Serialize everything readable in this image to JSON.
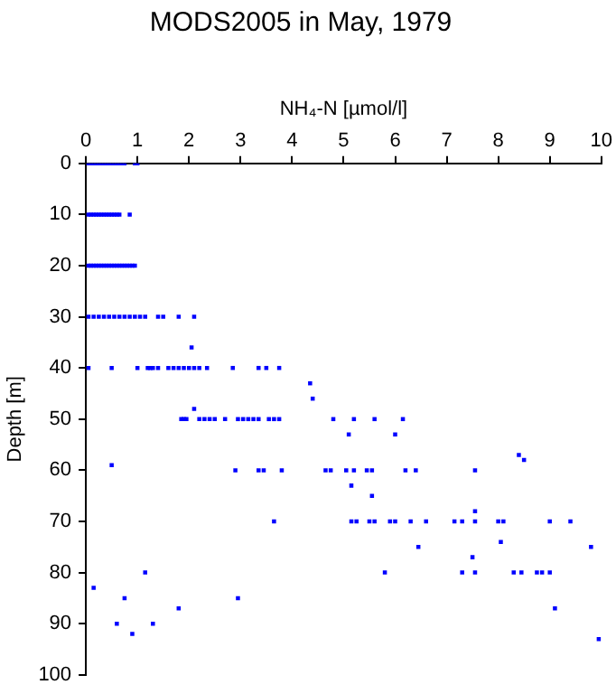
{
  "chart_data": {
    "type": "scatter",
    "title": "MODS2005 in May, 1979",
    "xlabel": "NH₄-N [µmol/l]",
    "ylabel": "Depth [m]",
    "xlim": [
      0,
      10
    ],
    "xticks": [
      0,
      1,
      2,
      3,
      4,
      5,
      6,
      7,
      8,
      9,
      10
    ],
    "ylim": [
      100,
      0
    ],
    "yticks": [
      0,
      10,
      20,
      30,
      40,
      50,
      60,
      70,
      80,
      90,
      100
    ],
    "grid": false,
    "legend": false,
    "marker": "square",
    "series": [
      {
        "color": "#0000ff",
        "x": [
          0.05,
          0.1,
          0.15,
          0.2,
          0.25,
          0.3,
          0.35,
          0.4,
          0.45,
          0.5,
          0.55,
          0.6,
          0.65,
          0.7,
          0.75,
          0.95,
          1.0,
          0.05,
          0.1,
          0.15,
          0.2,
          0.25,
          0.3,
          0.35,
          0.4,
          0.45,
          0.5,
          0.55,
          0.6,
          0.65,
          0.85,
          0.05,
          0.1,
          0.15,
          0.2,
          0.25,
          0.3,
          0.35,
          0.4,
          0.45,
          0.5,
          0.55,
          0.6,
          0.65,
          0.7,
          0.75,
          0.8,
          0.85,
          0.9,
          0.95,
          0.05,
          0.15,
          0.25,
          0.35,
          0.45,
          0.55,
          0.65,
          0.75,
          0.85,
          0.95,
          1.05,
          1.15,
          1.4,
          1.5,
          1.8,
          2.1,
          2.05,
          0.05,
          0.5,
          1.0,
          1.2,
          1.25,
          1.3,
          1.4,
          1.6,
          1.7,
          1.8,
          1.9,
          2.0,
          2.1,
          2.2,
          2.35,
          2.85,
          3.35,
          3.5,
          3.75,
          4.35,
          4.4,
          2.1,
          1.85,
          1.9,
          1.95,
          2.2,
          2.3,
          2.4,
          2.5,
          2.7,
          2.95,
          3.05,
          3.15,
          3.25,
          3.35,
          3.55,
          3.65,
          3.75,
          4.8,
          5.2,
          5.6,
          6.15,
          5.1,
          6.0,
          8.4,
          8.5,
          0.5,
          2.9,
          3.35,
          3.45,
          3.8,
          4.65,
          4.75,
          5.05,
          5.2,
          5.45,
          5.55,
          6.2,
          6.4,
          7.55,
          5.15,
          5.55,
          7.55,
          3.65,
          5.15,
          5.25,
          5.5,
          5.6,
          5.9,
          6.0,
          6.3,
          6.6,
          7.15,
          7.3,
          7.55,
          8.0,
          8.1,
          9.0,
          9.4,
          8.05,
          6.45,
          9.8,
          7.5,
          1.15,
          5.8,
          7.3,
          7.55,
          8.3,
          8.45,
          8.75,
          8.85,
          9.0,
          0.15,
          0.75,
          2.95,
          1.8,
          9.1,
          0.6,
          1.3,
          0.9,
          9.95
        ],
        "values": [
          0,
          0,
          0,
          0,
          0,
          0,
          0,
          0,
          0,
          0,
          0,
          0,
          0,
          0,
          0,
          0,
          0,
          10,
          10,
          10,
          10,
          10,
          10,
          10,
          10,
          10,
          10,
          10,
          10,
          10,
          10,
          20,
          20,
          20,
          20,
          20,
          20,
          20,
          20,
          20,
          20,
          20,
          20,
          20,
          20,
          20,
          20,
          20,
          20,
          20,
          30,
          30,
          30,
          30,
          30,
          30,
          30,
          30,
          30,
          30,
          30,
          30,
          30,
          30,
          30,
          30,
          36,
          40,
          40,
          40,
          40,
          40,
          40,
          40,
          40,
          40,
          40,
          40,
          40,
          40,
          40,
          40,
          40,
          40,
          40,
          40,
          43,
          46,
          48,
          50,
          50,
          50,
          50,
          50,
          50,
          50,
          50,
          50,
          50,
          50,
          50,
          50,
          50,
          50,
          50,
          50,
          50,
          50,
          50,
          53,
          53,
          57,
          58,
          59,
          60,
          60,
          60,
          60,
          60,
          60,
          60,
          60,
          60,
          60,
          60,
          60,
          60,
          63,
          65,
          68,
          70,
          70,
          70,
          70,
          70,
          70,
          70,
          70,
          70,
          70,
          70,
          70,
          70,
          70,
          70,
          70,
          74,
          75,
          75,
          77,
          80,
          80,
          80,
          80,
          80,
          80,
          80,
          80,
          80,
          83,
          85,
          85,
          87,
          87,
          90,
          90,
          92,
          93
        ]
      }
    ]
  }
}
